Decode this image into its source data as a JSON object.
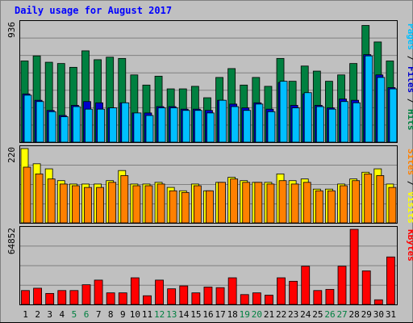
{
  "title": "Daily usage for August 2017",
  "chart_data": [
    {
      "type": "bar",
      "panel": "hits",
      "ymax_label": "936",
      "ylim": [
        0,
        936
      ],
      "categories": [
        "1",
        "2",
        "3",
        "4",
        "5",
        "6",
        "7",
        "8",
        "9",
        "10",
        "11",
        "12",
        "13",
        "14",
        "15",
        "16",
        "17",
        "18",
        "19",
        "20",
        "21",
        "22",
        "23",
        "24",
        "25",
        "26",
        "27",
        "28",
        "29",
        "30",
        "31"
      ],
      "right_label": [
        "Pages",
        "/",
        "Files",
        "/",
        "Hits"
      ],
      "series": [
        {
          "name": "Hits",
          "color": "#008040",
          "values": [
            640,
            680,
            630,
            620,
            590,
            720,
            650,
            670,
            660,
            530,
            450,
            520,
            420,
            420,
            440,
            350,
            510,
            580,
            450,
            510,
            440,
            660,
            480,
            600,
            560,
            480,
            530,
            620,
            920,
            790,
            640
          ]
        },
        {
          "name": "Files",
          "color": "#0000cc",
          "values": [
            380,
            330,
            250,
            210,
            290,
            320,
            310,
            270,
            310,
            230,
            230,
            280,
            280,
            260,
            260,
            250,
            330,
            300,
            270,
            310,
            260,
            470,
            290,
            380,
            290,
            270,
            340,
            330,
            690,
            530,
            430
          ]
        },
        {
          "name": "Pages",
          "color": "#00bfff",
          "values": [
            370,
            320,
            240,
            200,
            280,
            260,
            260,
            270,
            310,
            230,
            210,
            270,
            270,
            250,
            250,
            230,
            330,
            280,
            250,
            300,
            240,
            480,
            270,
            390,
            280,
            260,
            320,
            310,
            680,
            510,
            420
          ]
        }
      ]
    },
    {
      "type": "bar",
      "panel": "visits",
      "ymax_label": "220",
      "ylim": [
        0,
        220
      ],
      "right_label": [
        "Sites",
        "/",
        "Visits"
      ],
      "series": [
        {
          "name": "Visits",
          "color": "#ffff00",
          "values": [
            220,
            175,
            160,
            125,
            115,
            115,
            115,
            125,
            155,
            115,
            115,
            120,
            105,
            95,
            115,
            95,
            120,
            135,
            125,
            120,
            120,
            145,
            125,
            130,
            100,
            100,
            115,
            130,
            150,
            160,
            115
          ]
        },
        {
          "name": "Sites",
          "color": "#ff8000",
          "values": [
            165,
            145,
            130,
            115,
            110,
            105,
            105,
            120,
            140,
            110,
            110,
            115,
            95,
            90,
            110,
            95,
            120,
            130,
            120,
            120,
            115,
            125,
            115,
            120,
            95,
            95,
            110,
            125,
            145,
            140,
            105
          ]
        }
      ]
    },
    {
      "type": "bar",
      "panel": "kbytes",
      "ymax_label": "64852",
      "ylim": [
        0,
        64852
      ],
      "right_label": [
        "KBytes"
      ],
      "series": [
        {
          "name": "KBytes",
          "color": "#ff0000",
          "values": [
            12000,
            14000,
            9500,
            12000,
            12000,
            17000,
            21000,
            10000,
            10000,
            23000,
            7500,
            21000,
            13500,
            16000,
            10000,
            15000,
            14500,
            23000,
            8500,
            10000,
            8000,
            23000,
            20000,
            33000,
            12000,
            13000,
            33000,
            64852,
            29000,
            4000,
            41000
          ]
        }
      ]
    }
  ],
  "colors": {
    "green_labels": [
      "5",
      "6",
      "12",
      "13",
      "19",
      "20",
      "26",
      "27"
    ]
  }
}
